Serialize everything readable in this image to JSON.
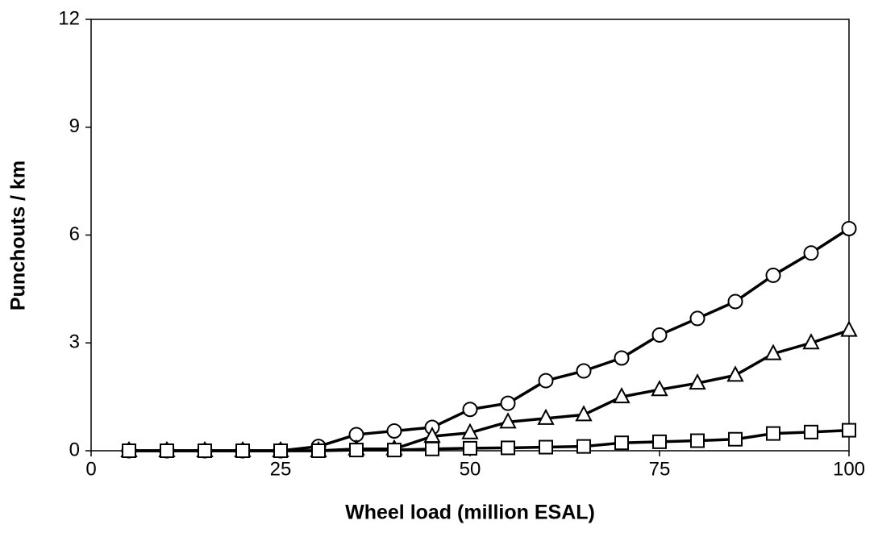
{
  "chart_data": {
    "type": "line",
    "x_label": "Wheel load (million ESAL)",
    "y_label": "Punchouts / km",
    "x": [
      5,
      10,
      15,
      20,
      25,
      30,
      35,
      40,
      45,
      50,
      55,
      60,
      65,
      70,
      75,
      80,
      85,
      90,
      95,
      100
    ],
    "series": [
      {
        "marker": "circle",
        "color": "#000000",
        "values": [
          0,
          0,
          0,
          0,
          0,
          0.12,
          0.45,
          0.55,
          0.65,
          1.15,
          1.32,
          1.95,
          2.22,
          2.58,
          3.22,
          3.68,
          4.15,
          4.88,
          5.5,
          6.18
        ]
      },
      {
        "marker": "triangle",
        "color": "#000000",
        "values": [
          0,
          0,
          0,
          0,
          0,
          0,
          0.05,
          0.05,
          0.4,
          0.5,
          0.8,
          0.9,
          1.0,
          1.5,
          1.7,
          1.88,
          2.1,
          2.7,
          3.0,
          3.35
        ]
      },
      {
        "marker": "square",
        "color": "#000000",
        "values": [
          0,
          0,
          0,
          0,
          0,
          0,
          0.02,
          0.02,
          0.05,
          0.07,
          0.08,
          0.1,
          0.12,
          0.22,
          0.25,
          0.28,
          0.32,
          0.48,
          0.52,
          0.57
        ]
      }
    ],
    "xlim": [
      0,
      100
    ],
    "xticks": [
      0,
      25,
      50,
      75,
      100
    ],
    "ylim": [
      0,
      12
    ],
    "yticks": [
      0,
      3,
      6,
      9,
      12
    ],
    "grid": false
  }
}
